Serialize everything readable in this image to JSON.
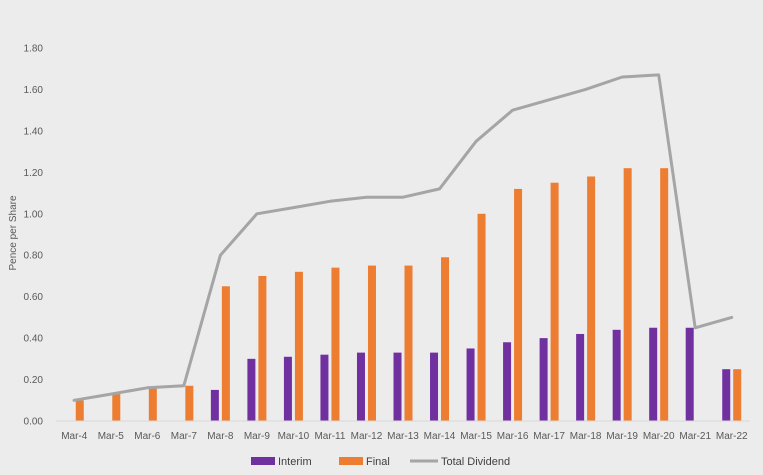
{
  "chart_data": {
    "type": "bar",
    "title": "",
    "xlabel": "",
    "ylabel": "Pence per Share",
    "ylim": [
      0,
      1.8
    ],
    "ytick_step": 0.2,
    "grid": false,
    "legend_position": "bottom",
    "categories": [
      "Mar-4",
      "Mar-5",
      "Mar-6",
      "Mar-7",
      "Mar-8",
      "Mar-9",
      "Mar-10",
      "Mar-11",
      "Mar-12",
      "Mar-13",
      "Mar-14",
      "Mar-15",
      "Mar-16",
      "Mar-17",
      "Mar-18",
      "Mar-19",
      "Mar-20",
      "Mar-21",
      "Mar-22"
    ],
    "series": [
      {
        "name": "Interim",
        "type": "bar",
        "color": "#7030a0",
        "values": [
          0,
          0,
          0,
          0,
          0.15,
          0.3,
          0.31,
          0.32,
          0.33,
          0.33,
          0.33,
          0.35,
          0.38,
          0.4,
          0.42,
          0.44,
          0.45,
          0.45,
          0.25
        ]
      },
      {
        "name": "Final",
        "type": "bar",
        "color": "#ed7d31",
        "values": [
          0.1,
          0.13,
          0.16,
          0.17,
          0.65,
          0.7,
          0.72,
          0.74,
          0.75,
          0.75,
          0.79,
          1.0,
          1.12,
          1.15,
          1.18,
          1.22,
          1.22,
          0,
          0.25
        ]
      },
      {
        "name": "Total Dividend",
        "type": "line",
        "color": "#a5a5a5",
        "values": [
          0.1,
          0.13,
          0.16,
          0.17,
          0.8,
          1.0,
          1.03,
          1.06,
          1.08,
          1.08,
          1.12,
          1.35,
          1.5,
          1.55,
          1.6,
          1.66,
          1.67,
          0.45,
          0.5
        ]
      }
    ]
  }
}
